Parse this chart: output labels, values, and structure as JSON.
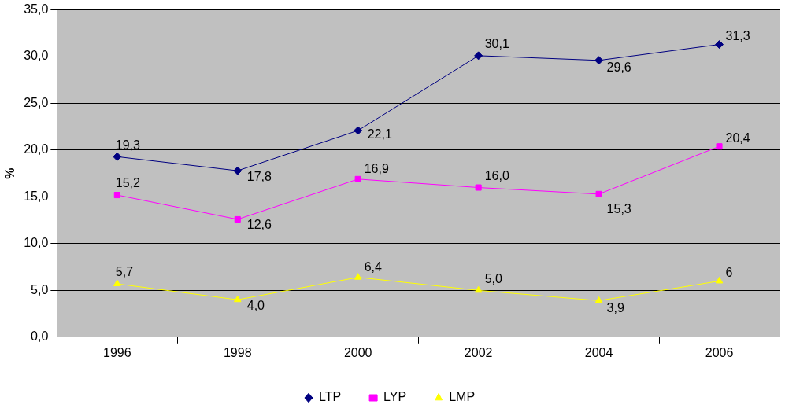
{
  "chart_data": {
    "type": "line",
    "ylabel": "%",
    "categories": [
      "1996",
      "1998",
      "2000",
      "2002",
      "2004",
      "2006"
    ],
    "ylim": [
      0,
      35
    ],
    "yticks": [
      {
        "value": 0,
        "label": "0,0"
      },
      {
        "value": 5,
        "label": "5,0"
      },
      {
        "value": 10,
        "label": "10,0"
      },
      {
        "value": 15,
        "label": "15,0"
      },
      {
        "value": 20,
        "label": "20,0"
      },
      {
        "value": 25,
        "label": "25,0"
      },
      {
        "value": 30,
        "label": "30,0"
      },
      {
        "value": 35,
        "label": "35,0"
      }
    ],
    "grid": "y",
    "legend": "bottom",
    "line_style": "solid",
    "series": [
      {
        "name": "LTP",
        "color": "#000080",
        "marker": "diamond",
        "values": [
          19.3,
          17.8,
          22.1,
          30.1,
          29.6,
          31.3
        ],
        "value_labels": [
          "19,3",
          "17,8",
          "22,1",
          "30,1",
          "29,6",
          "31,3"
        ]
      },
      {
        "name": "LYP",
        "color": "#ff00ff",
        "marker": "square",
        "values": [
          15.2,
          12.6,
          16.9,
          16.0,
          15.3,
          20.4
        ],
        "value_labels": [
          "15,2",
          "12,6",
          "16,9",
          "16,0",
          "15,3",
          "20,4"
        ]
      },
      {
        "name": "LMP",
        "color": "#ffff00",
        "marker": "triangle",
        "values": [
          5.7,
          4.0,
          6.4,
          5.0,
          3.9,
          6
        ],
        "value_labels": [
          "5,7",
          "4,0",
          "6,4",
          "5,0",
          "3,9",
          "6"
        ]
      }
    ]
  }
}
